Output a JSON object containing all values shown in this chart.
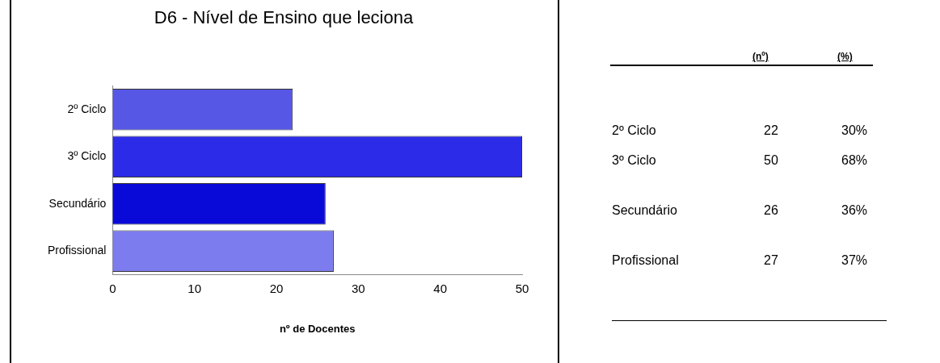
{
  "chart_data": [
    {
      "type": "bar",
      "orientation": "horizontal",
      "title": "D6 - Nível de Ensino que leciona",
      "xlabel": "nº de Docentes",
      "categories": [
        "2º Ciclo",
        "3º Ciclo",
        "Secundário",
        "Profissional"
      ],
      "values": [
        22,
        50,
        26,
        27
      ],
      "colors": [
        "#5757e6",
        "#2c2ce8",
        "#0a0ad8",
        "#7c7cee"
      ],
      "xlim": [
        0,
        50
      ],
      "xticks": [
        0,
        10,
        20,
        30,
        40,
        50
      ],
      "grid": false,
      "legend": false
    },
    {
      "type": "other",
      "annotations": [
        "(nº)",
        "(%)",
        "2º Ciclo",
        "22",
        "30%",
        "3º Ciclo",
        "50",
        "68%",
        "Secundário",
        "26",
        "36%",
        "Profissional",
        "27",
        "37%"
      ]
    }
  ]
}
